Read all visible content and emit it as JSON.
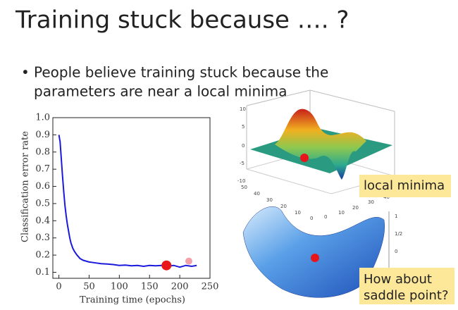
{
  "slide": {
    "title": "Training stuck because …. ?",
    "bullet": [
      "•",
      "People believe training stuck because the",
      "parameters are near a local minima"
    ],
    "local_minima_label": "local minima",
    "saddle_label": [
      "How about",
      "saddle point?"
    ],
    "surface_top_zticks": [
      "10",
      "5",
      "0",
      "-5",
      "-10"
    ],
    "surface_top_xticks": [
      "50",
      "40",
      "30",
      "20",
      "10",
      "0"
    ],
    "surface_top_yticks": [
      "0",
      "10",
      "20",
      "30",
      "40"
    ],
    "surface_bottom_zticks": [
      "1",
      "1/2",
      "0"
    ]
  },
  "chart_data": {
    "type": "line",
    "xlabel": "Training time (epochs)",
    "ylabel": "Classification error rate",
    "x": [
      0,
      2,
      4,
      6,
      8,
      10,
      12,
      14,
      16,
      18,
      20,
      23,
      26,
      30,
      35,
      40,
      45,
      50,
      60,
      70,
      80,
      90,
      100,
      110,
      120,
      130,
      140,
      150,
      160,
      170,
      180,
      190,
      200,
      210,
      220,
      228
    ],
    "series": [
      {
        "color": "#1a1adc",
        "values": [
          0.9,
          0.86,
          0.76,
          0.66,
          0.57,
          0.49,
          0.43,
          0.38,
          0.34,
          0.3,
          0.27,
          0.24,
          0.22,
          0.2,
          0.18,
          0.17,
          0.165,
          0.16,
          0.155,
          0.15,
          0.148,
          0.145,
          0.14,
          0.142,
          0.138,
          0.14,
          0.135,
          0.14,
          0.138,
          0.14,
          0.135,
          0.14,
          0.13,
          0.14,
          0.135,
          0.14
        ]
      }
    ],
    "markers": [
      {
        "x": 178,
        "y": 0.14,
        "color": "#e8161a"
      },
      {
        "x": 215,
        "y": 0.165,
        "color": "#f4a0a8"
      }
    ],
    "xlim": [
      -10,
      250
    ],
    "ylim": [
      0.065,
      1.0
    ],
    "xticks": [
      0,
      50,
      100,
      150,
      200,
      250
    ],
    "yticks": [
      {
        "value": 0.1,
        "label": "0.1"
      },
      {
        "value": 0.2,
        "label": "0.2"
      },
      {
        "value": 0.3,
        "label": "0.3"
      },
      {
        "value": 0.4,
        "label": "0.4"
      },
      {
        "value": 0.5,
        "label": "0.5"
      },
      {
        "value": 0.6,
        "label": "0.6"
      },
      {
        "value": 0.7,
        "label": "0.7"
      },
      {
        "value": 0.8,
        "label": "0.8"
      },
      {
        "value": 0.9,
        "label": "0.9"
      },
      {
        "value": 1,
        "label": "1.0"
      }
    ]
  }
}
